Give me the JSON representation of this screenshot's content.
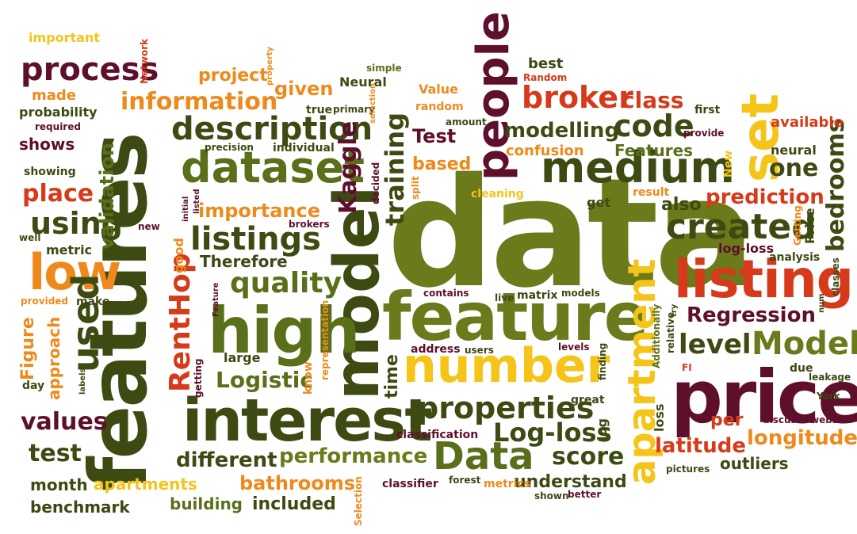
{
  "colors": {
    "dark_olive": "#3d4a12",
    "olive": "#6b7a1a",
    "maroon": "#5e0f2c",
    "red": "#d63a1a",
    "orange": "#ee8a1c",
    "yellow": "#f4c419",
    "green": "#5a6f1a"
  },
  "words": [
    "data",
    "features",
    "model",
    "feature",
    "interest",
    "high",
    "listing",
    "price",
    "number",
    "people",
    "medium",
    "dataset",
    "low",
    "set",
    "Data",
    "apartment",
    "used",
    "description",
    "listings",
    "information",
    "RentHop",
    "quality",
    "Model",
    "training",
    "created",
    "Kaggle",
    "broker",
    "process",
    "using",
    "Regression",
    "properties",
    "code",
    "level",
    "bedrooms",
    "performance",
    "Log-loss",
    "different",
    "latitude",
    "longitude",
    "test",
    "values",
    "score",
    "place",
    "modelling",
    "class",
    "validation",
    "one",
    "importance",
    "Logistic",
    "prediction",
    "Therefore",
    "Features",
    "also",
    "available",
    "project",
    "given",
    "bathrooms",
    "building",
    "included",
    "understand",
    "apartments",
    "benchmark",
    "month",
    "metric",
    "shows",
    "Figure",
    "approach",
    "Test",
    "based",
    "time",
    "per",
    "outliers",
    "made",
    "probability",
    "showing",
    "confusion",
    "neural",
    "first",
    "important",
    "Value",
    "best",
    "Neural",
    "simple",
    "random",
    "true",
    "primary",
    "required",
    "precision",
    "individual",
    "decided",
    "split",
    "cleaning",
    "amount",
    "Random",
    "provide",
    "New",
    "Price",
    "Getting",
    "analysis",
    "classes",
    "log-loss",
    "live",
    "models",
    "matrix",
    "contains",
    "address",
    "users",
    "levels",
    "great",
    "log",
    "loss",
    "due",
    "relative",
    "leakage",
    "York",
    "finding",
    "representation",
    "know",
    "getting",
    "large",
    "day",
    "labels",
    "provided",
    "make",
    "well",
    "good",
    "new",
    "initial",
    "listed",
    "brokers",
    "classification",
    "classifier",
    "forest",
    "metrics",
    "shown",
    "better",
    "pictures",
    "discussed",
    "website",
    "Selection",
    "Feature",
    "Additionally",
    "try",
    "FI",
    "result",
    "get",
    "num",
    "Network",
    "property",
    "selection"
  ]
}
